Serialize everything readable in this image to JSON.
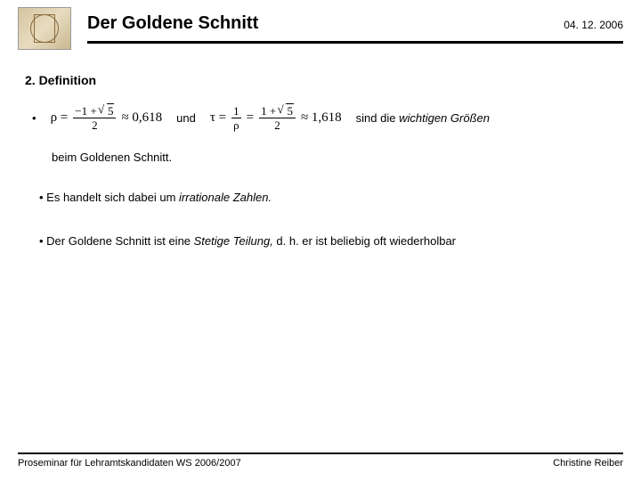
{
  "header": {
    "title": "Der Goldene Schnitt",
    "date": "04. 12. 2006"
  },
  "section": {
    "heading": "2. Definition"
  },
  "formulas": {
    "rho_lhs": "ρ =",
    "rho_num_a": "−1 +",
    "rho_sqrt": "5",
    "rho_den": "2",
    "rho_approx": "≈ 0,618",
    "und": "und",
    "tau_lhs": "τ =",
    "tau_inv_num": "1",
    "tau_inv_den": "ρ",
    "tau_eq": "=",
    "tau_num_a": "1 +",
    "tau_sqrt": "5",
    "tau_den": "2",
    "tau_approx": "≈ 1,618"
  },
  "text": {
    "tail_pre": "sind die ",
    "tail_ital": "wichtigen Größen",
    "line2": "beim Goldenen Schnitt.",
    "b2_pre": "• Es handelt sich dabei um ",
    "b2_ital": "irrationale Zahlen.",
    "b3_pre": "• Der Goldene Schnitt ist eine ",
    "b3_ital": "Stetige Teilung,",
    "b3_post": " d. h. er ist beliebig oft wiederholbar"
  },
  "footer": {
    "left": "Proseminar für Lehramtskandidaten WS 2006/2007",
    "right": "Christine Reiber"
  },
  "colors": {
    "text": "#000000",
    "bg": "#ffffff",
    "rule": "#000000"
  }
}
